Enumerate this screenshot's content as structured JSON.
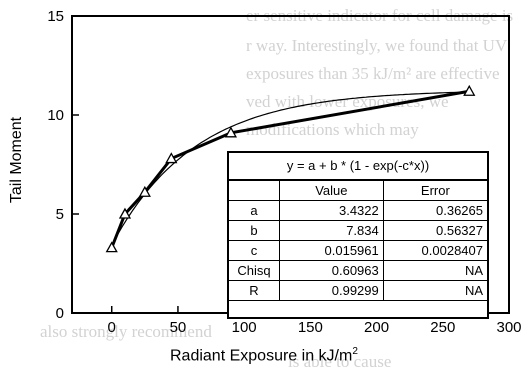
{
  "chart_data": {
    "type": "line",
    "xlabel": "Radiant Exposure in kJ/m",
    "xlabel_superscript": "2",
    "ylabel": "Tail Moment",
    "xlim": [
      -30,
      300
    ],
    "ylim": [
      0,
      15
    ],
    "x_ticks": [
      0,
      50,
      100,
      150,
      200,
      250,
      300
    ],
    "y_ticks": [
      0,
      5,
      10,
      15
    ],
    "series": [
      {
        "x": [
          0,
          10,
          25,
          45,
          90,
          270
        ],
        "y": [
          3.3,
          5.0,
          6.1,
          7.8,
          9.1,
          11.2
        ],
        "marker": "triangle-open",
        "color": "#000000"
      }
    ],
    "fit_curve": {
      "equation": "y = a + b * (1 - exp(-c*x))",
      "a": 3.4322,
      "b": 7.834,
      "c": 0.015961
    },
    "fit_table": {
      "headers": [
        "",
        "Value",
        "Error"
      ],
      "rows": [
        [
          "a",
          "3.4322",
          "0.36265"
        ],
        [
          "b",
          "7.834",
          "0.56327"
        ],
        [
          "c",
          "0.015961",
          "0.0028407"
        ],
        [
          "Chisq",
          "0.60963",
          "NA"
        ],
        [
          "R",
          "0.99299",
          "NA"
        ]
      ]
    }
  }
}
